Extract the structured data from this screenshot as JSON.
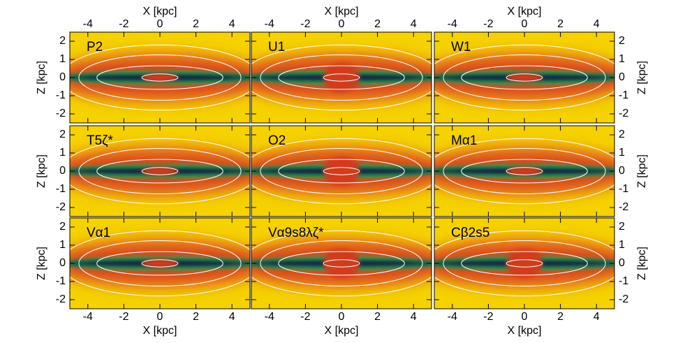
{
  "chart_data": [
    {
      "type": "heatmap",
      "title": "P2",
      "xlabel": "X [kpc]",
      "ylabel": "Z [kpc]",
      "xlim": [
        -5,
        5
      ],
      "ylim": [
        -2.5,
        2.5
      ],
      "xticks": [
        -4,
        -2,
        0,
        2,
        4
      ],
      "yticks": [
        -2,
        -1,
        0,
        1,
        2
      ]
    },
    {
      "type": "heatmap",
      "title": "U1",
      "xlabel": "X [kpc]",
      "xlim": [
        -5,
        5
      ],
      "ylim": [
        -2.5,
        2.5
      ],
      "xticks": [
        -4,
        -2,
        0,
        2,
        4
      ],
      "yticks": [
        -2,
        -1,
        0,
        1,
        2
      ]
    },
    {
      "type": "heatmap",
      "title": "W1",
      "xlabel": "X [kpc]",
      "ylabel": "Z [kpc]",
      "xlim": [
        -5,
        5
      ],
      "ylim": [
        -2.5,
        2.5
      ],
      "xticks": [
        -4,
        -2,
        0,
        2,
        4
      ],
      "yticks": [
        -2,
        -1,
        0,
        1,
        2
      ]
    },
    {
      "type": "heatmap",
      "title": "T5ζ*",
      "ylabel": "Z [kpc]",
      "xlim": [
        -5,
        5
      ],
      "ylim": [
        -2.5,
        2.5
      ],
      "xticks": [
        -4,
        -2,
        0,
        2,
        4
      ],
      "yticks": [
        -2,
        -1,
        0,
        1,
        2
      ]
    },
    {
      "type": "heatmap",
      "title": "O2",
      "xlim": [
        -5,
        5
      ],
      "ylim": [
        -2.5,
        2.5
      ],
      "xticks": [
        -4,
        -2,
        0,
        2,
        4
      ],
      "yticks": [
        -2,
        -1,
        0,
        1,
        2
      ]
    },
    {
      "type": "heatmap",
      "title": "Mα1",
      "ylabel": "Z [kpc]",
      "xlim": [
        -5,
        5
      ],
      "ylim": [
        -2.5,
        2.5
      ],
      "xticks": [
        -4,
        -2,
        0,
        2,
        4
      ],
      "yticks": [
        -2,
        -1,
        0,
        1,
        2
      ]
    },
    {
      "type": "heatmap",
      "title": "Vα1",
      "xlabel": "X [kpc]",
      "ylabel": "Z [kpc]",
      "xlim": [
        -5,
        5
      ],
      "ylim": [
        -2.5,
        2.5
      ],
      "xticks": [
        -4,
        -2,
        0,
        2,
        4
      ],
      "yticks": [
        -2,
        -1,
        0,
        1,
        2
      ]
    },
    {
      "type": "heatmap",
      "title": "Vα9s8λζ*",
      "xlabel": "X [kpc]",
      "xlim": [
        -5,
        5
      ],
      "ylim": [
        -2.5,
        2.5
      ],
      "xticks": [
        -4,
        -2,
        0,
        2,
        4
      ],
      "yticks": [
        -2,
        -1,
        0,
        1,
        2
      ]
    },
    {
      "type": "heatmap",
      "title": "Cβ2s5",
      "xlabel": "X [kpc]",
      "ylabel": "Z [kpc]",
      "xlim": [
        -5,
        5
      ],
      "ylim": [
        -2.5,
        2.5
      ],
      "xticks": [
        -4,
        -2,
        0,
        2,
        4
      ],
      "yticks": [
        -2,
        -1,
        0,
        1,
        2
      ]
    }
  ]
}
